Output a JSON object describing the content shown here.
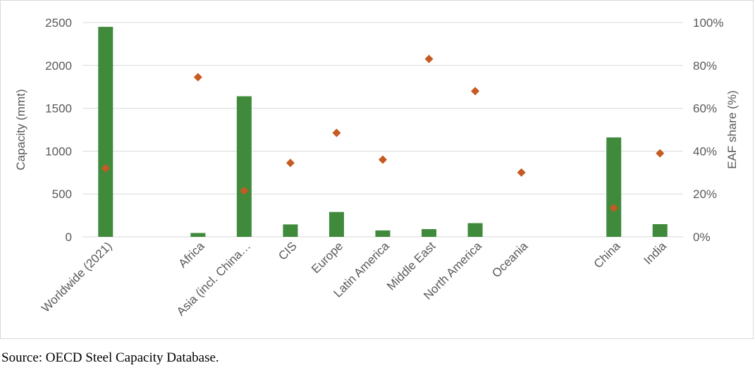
{
  "chart_data": {
    "type": "bar",
    "categories": [
      "Worldwide (2021)",
      "",
      "Africa",
      "Asia (incl. China…",
      "CIS",
      "Europe",
      "Latin America",
      "Middle East",
      "North America",
      "Oceania",
      "",
      "China",
      "India"
    ],
    "series": [
      {
        "type": "bar",
        "axis": "left",
        "color": "#3f8a3b",
        "values": [
          2450,
          null,
          45,
          1640,
          145,
          290,
          75,
          90,
          160,
          0,
          null,
          1160,
          148
        ]
      },
      {
        "type": "scatter",
        "marker": "diamond",
        "axis": "right",
        "color": "#c55a22",
        "values": [
          32,
          null,
          74.5,
          21.5,
          34.5,
          48.5,
          36,
          83,
          68,
          30,
          null,
          13.5,
          39
        ]
      }
    ],
    "ylabel": "Capacity (mmt)",
    "ylim": [
      0,
      2500
    ],
    "yticks": [
      "0",
      "500",
      "1000",
      "1500",
      "2000",
      "2500"
    ],
    "y2label": "EAF share (%)",
    "y2lim": [
      0,
      100
    ],
    "y2ticks": [
      "0%",
      "20%",
      "40%",
      "60%",
      "80%",
      "100%"
    ],
    "grid": "horizontal",
    "legend": "none"
  },
  "source": "Source: OECD Steel Capacity Database."
}
